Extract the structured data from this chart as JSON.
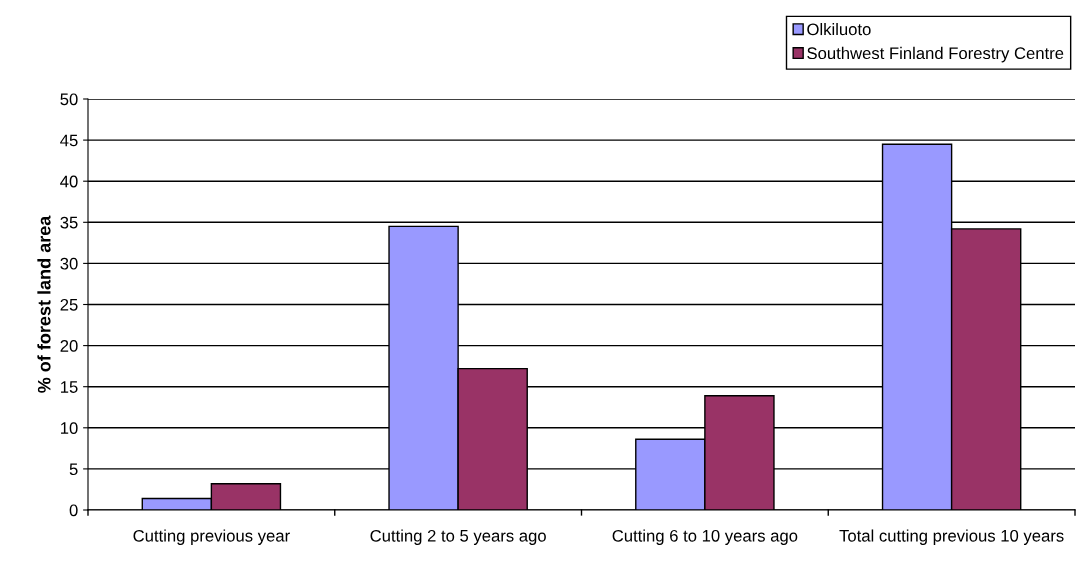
{
  "chart_data": {
    "type": "bar",
    "ylabel": "% of forest land area",
    "categories": [
      "Cutting previous year",
      "Cutting 2 to 5 years ago",
      "Cutting 6 to 10 years ago",
      "Total cutting previous 10 years"
    ],
    "series": [
      {
        "name": "Olkiluoto",
        "color": "#9999ff",
        "values": [
          1.4,
          34.5,
          8.6,
          44.5
        ]
      },
      {
        "name": "Southwest Finland Forestry Centre",
        "color": "#993366",
        "values": [
          3.2,
          17.2,
          13.9,
          34.2
        ]
      }
    ],
    "ylim": [
      0,
      50
    ],
    "yticks": [
      0,
      5,
      10,
      15,
      20,
      25,
      30,
      35,
      40,
      45,
      50
    ],
    "grid": "y",
    "legend": "top right"
  }
}
